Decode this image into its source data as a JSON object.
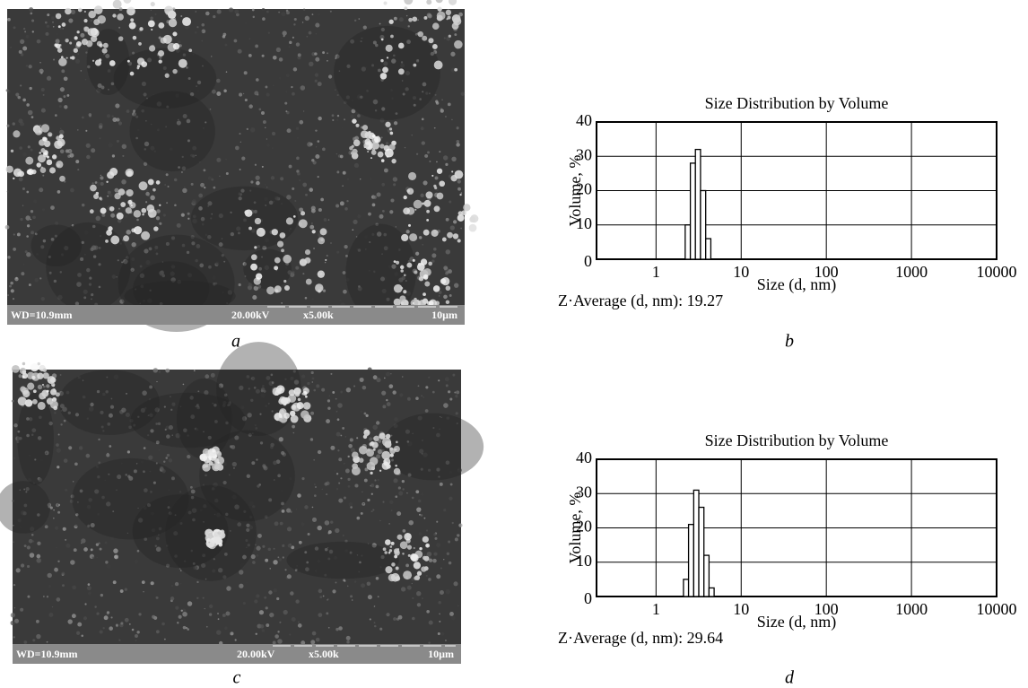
{
  "images": [
    {
      "info": [
        "WD=10.9mm",
        "20.00kV",
        "x5.00k",
        "10µm"
      ],
      "caption": "a"
    },
    {
      "info": [
        "WD=10.9mm",
        "20.00kV",
        "x5.00k",
        "10µm"
      ],
      "caption": "c"
    }
  ],
  "chart_data": [
    {
      "type": "histogram",
      "title": "Size Distribution by Volume",
      "x_label": "Size (d, nm)",
      "y_label": "Volume, %",
      "annotation": "Z·Average (d, nm): 19.27",
      "caption": "b",
      "xscale": "log",
      "bins": [
        2.2,
        2.53,
        2.9,
        3.33,
        3.83,
        4.4
      ],
      "values": [
        10,
        28,
        32,
        20,
        6
      ],
      "xlim": [
        0.2,
        10000
      ],
      "xticks": [
        1,
        10,
        100,
        1000,
        10000
      ],
      "ylim": [
        0,
        40
      ],
      "yticks": [
        0,
        10,
        20,
        30,
        40
      ],
      "grid": true,
      "color": "#ffffff"
    },
    {
      "type": "histogram",
      "title": "Size Distribution by Volume",
      "x_label": "Size (d, nm)",
      "y_label": "Volume, %",
      "annotation": "Z·Average (d, nm): 29.64",
      "caption": "d",
      "xscale": "log",
      "bins": [
        2.1,
        2.41,
        2.77,
        3.18,
        3.65,
        4.19,
        4.81
      ],
      "values": [
        5,
        21,
        31,
        26,
        12,
        2.5
      ],
      "xlim": [
        0.2,
        10000
      ],
      "xticks": [
        1,
        10,
        100,
        1000,
        10000
      ],
      "ylim": [
        0,
        40
      ],
      "yticks": [
        0,
        10,
        20,
        30,
        40
      ],
      "grid": true,
      "color": "#ffffff"
    }
  ]
}
